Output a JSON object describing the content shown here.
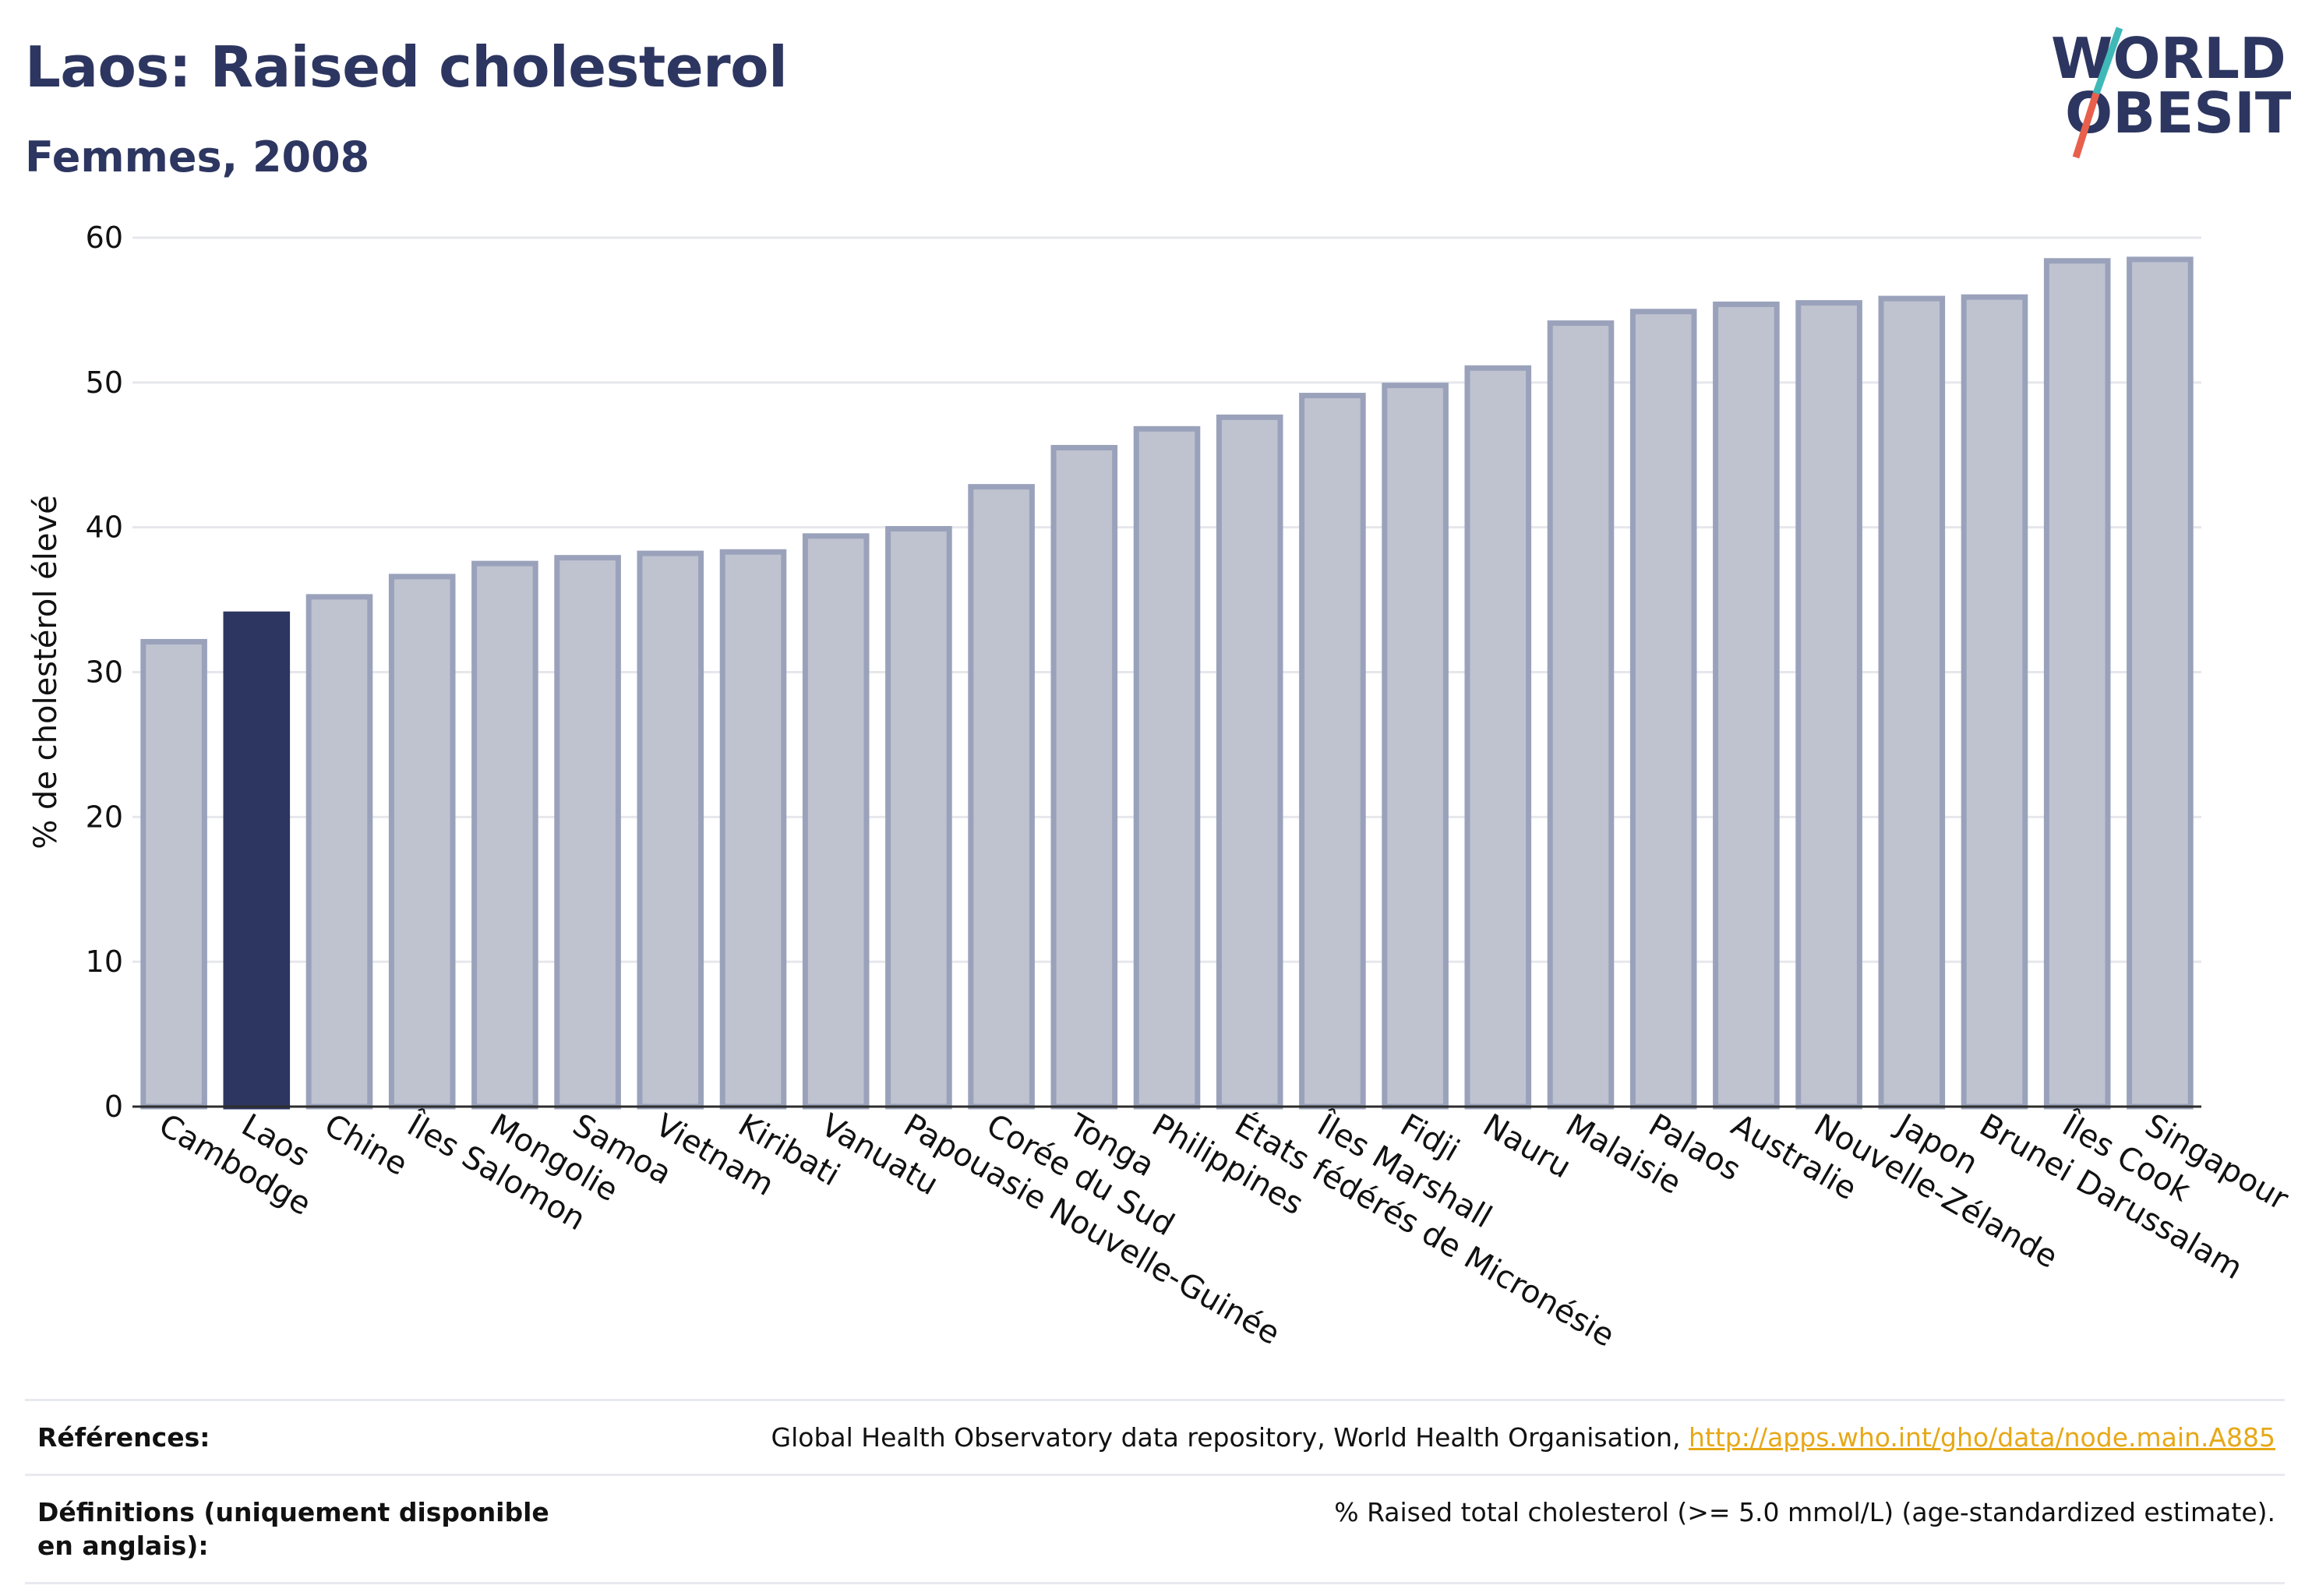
{
  "header": {
    "title": "Laos: Raised cholesterol",
    "subtitle": "Femmes, 2008"
  },
  "logo": {
    "line1": "WORLD",
    "line2": "OBESITY",
    "colors": {
      "text": "#2d3660",
      "slash_top": "#3fb8b8",
      "slash_bottom": "#e8604c"
    }
  },
  "chart_data": {
    "type": "bar",
    "title": "Laos: Raised cholesterol",
    "subtitle": "Femmes, 2008",
    "ylabel": "% de cholestérol élevé",
    "xlabel": "",
    "ylim": [
      0,
      60
    ],
    "yticks": [
      0,
      10,
      20,
      30,
      40,
      50,
      60
    ],
    "grid": true,
    "highlight": "Laos",
    "colors": {
      "bar": "#bfc3d0",
      "bar_edge": "#9aa2bb",
      "highlight": "#2d3660"
    },
    "categories": [
      "Cambodge",
      "Laos",
      "Chine",
      "Îles Salomon",
      "Mongolie",
      "Samoa",
      "Vietnam",
      "Kiribati",
      "Vanuatu",
      "Papouasie Nouvelle-Guinée",
      "Corée du Sud",
      "Tonga",
      "Philippines",
      "États fédérés de Micronésie",
      "Îles Marshall",
      "Fidji",
      "Nauru",
      "Malaisie",
      "Palaos",
      "Australie",
      "Nouvelle-Zélande",
      "Japon",
      "Brunei Darussalam",
      "Îles Cook",
      "Singapour"
    ],
    "values": [
      32.1,
      34.0,
      35.2,
      36.6,
      37.5,
      37.9,
      38.2,
      38.3,
      39.4,
      39.9,
      42.8,
      45.5,
      46.8,
      47.6,
      49.1,
      49.8,
      51.0,
      54.1,
      54.9,
      55.4,
      55.5,
      55.8,
      55.9,
      58.4,
      58.5
    ]
  },
  "footer": {
    "references_label": "Références:",
    "references_text": "Global Health Observatory data repository, World Health Organisation, ",
    "references_link": "http://apps.who.int/gho/data/node.main.A885",
    "definitions_label": "Définitions (uniquement disponible en anglais):",
    "definitions_text": "% Raised total cholesterol (>= 5.0 mmol/L) (age-standardized estimate)."
  }
}
